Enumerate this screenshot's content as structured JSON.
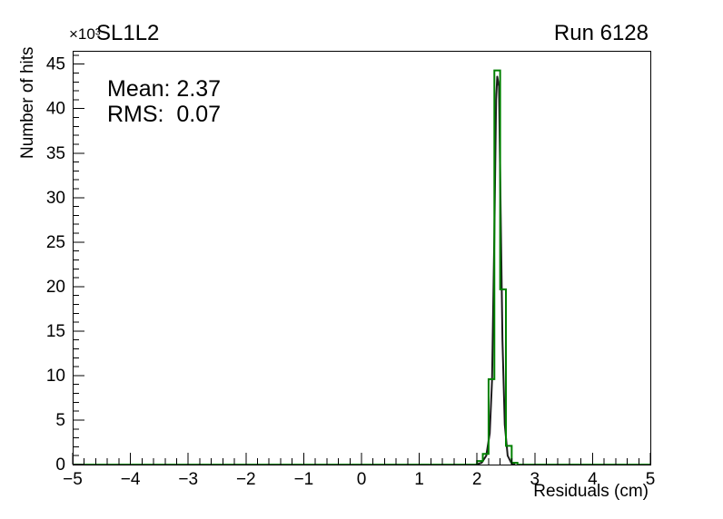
{
  "chart_data": {
    "type": "histogram",
    "title": "SL1L2",
    "top_right_label": "Run 6128",
    "xlabel": "Residuals (cm)",
    "ylabel": "Number of hits",
    "y_scale_label": "×10³",
    "xlim": [
      -5,
      5
    ],
    "ylim": [
      0,
      46.5
    ],
    "x_ticks": [
      -5,
      -4,
      -3,
      -2,
      -1,
      0,
      1,
      2,
      3,
      4,
      5
    ],
    "x_tick_labels": [
      "−5",
      "−4",
      "−3",
      "−2",
      "−1",
      "0",
      "1",
      "2",
      "3",
      "4",
      "5"
    ],
    "x_minor_step": 0.2,
    "y_ticks": [
      0,
      5,
      10,
      15,
      20,
      25,
      30,
      35,
      40,
      45
    ],
    "y_tick_labels": [
      "0",
      "5",
      "10",
      "15",
      "20",
      "25",
      "30",
      "35",
      "40",
      "45"
    ],
    "y_minor_step": 1,
    "grid": false,
    "legend": "none",
    "annotations": {
      "mean": "Mean: 2.37",
      "rms": "RMS:  0.07"
    },
    "series": [
      {
        "name": "fit-curve-black",
        "color": "#1c1c1c",
        "style": "line",
        "points": [
          [
            1.98,
            0
          ],
          [
            2.08,
            0.2
          ],
          [
            2.16,
            1.0
          ],
          [
            2.22,
            3.5
          ],
          [
            2.26,
            9.5
          ],
          [
            2.3,
            26
          ],
          [
            2.33,
            41
          ],
          [
            2.35,
            43.6
          ],
          [
            2.38,
            42.5
          ],
          [
            2.41,
            28
          ],
          [
            2.44,
            14
          ],
          [
            2.48,
            4.5
          ],
          [
            2.53,
            1.0
          ],
          [
            2.6,
            0.1
          ],
          [
            2.66,
            0
          ]
        ]
      },
      {
        "name": "residuals-histogram-green",
        "color": "#008000",
        "style": "steps",
        "bin_edges": [
          2.0,
          2.1,
          2.2,
          2.3,
          2.4,
          2.5,
          2.6,
          2.7
        ],
        "counts": [
          0.4,
          1.2,
          9.6,
          44.3,
          19.7,
          2.1,
          0.2
        ]
      }
    ]
  }
}
